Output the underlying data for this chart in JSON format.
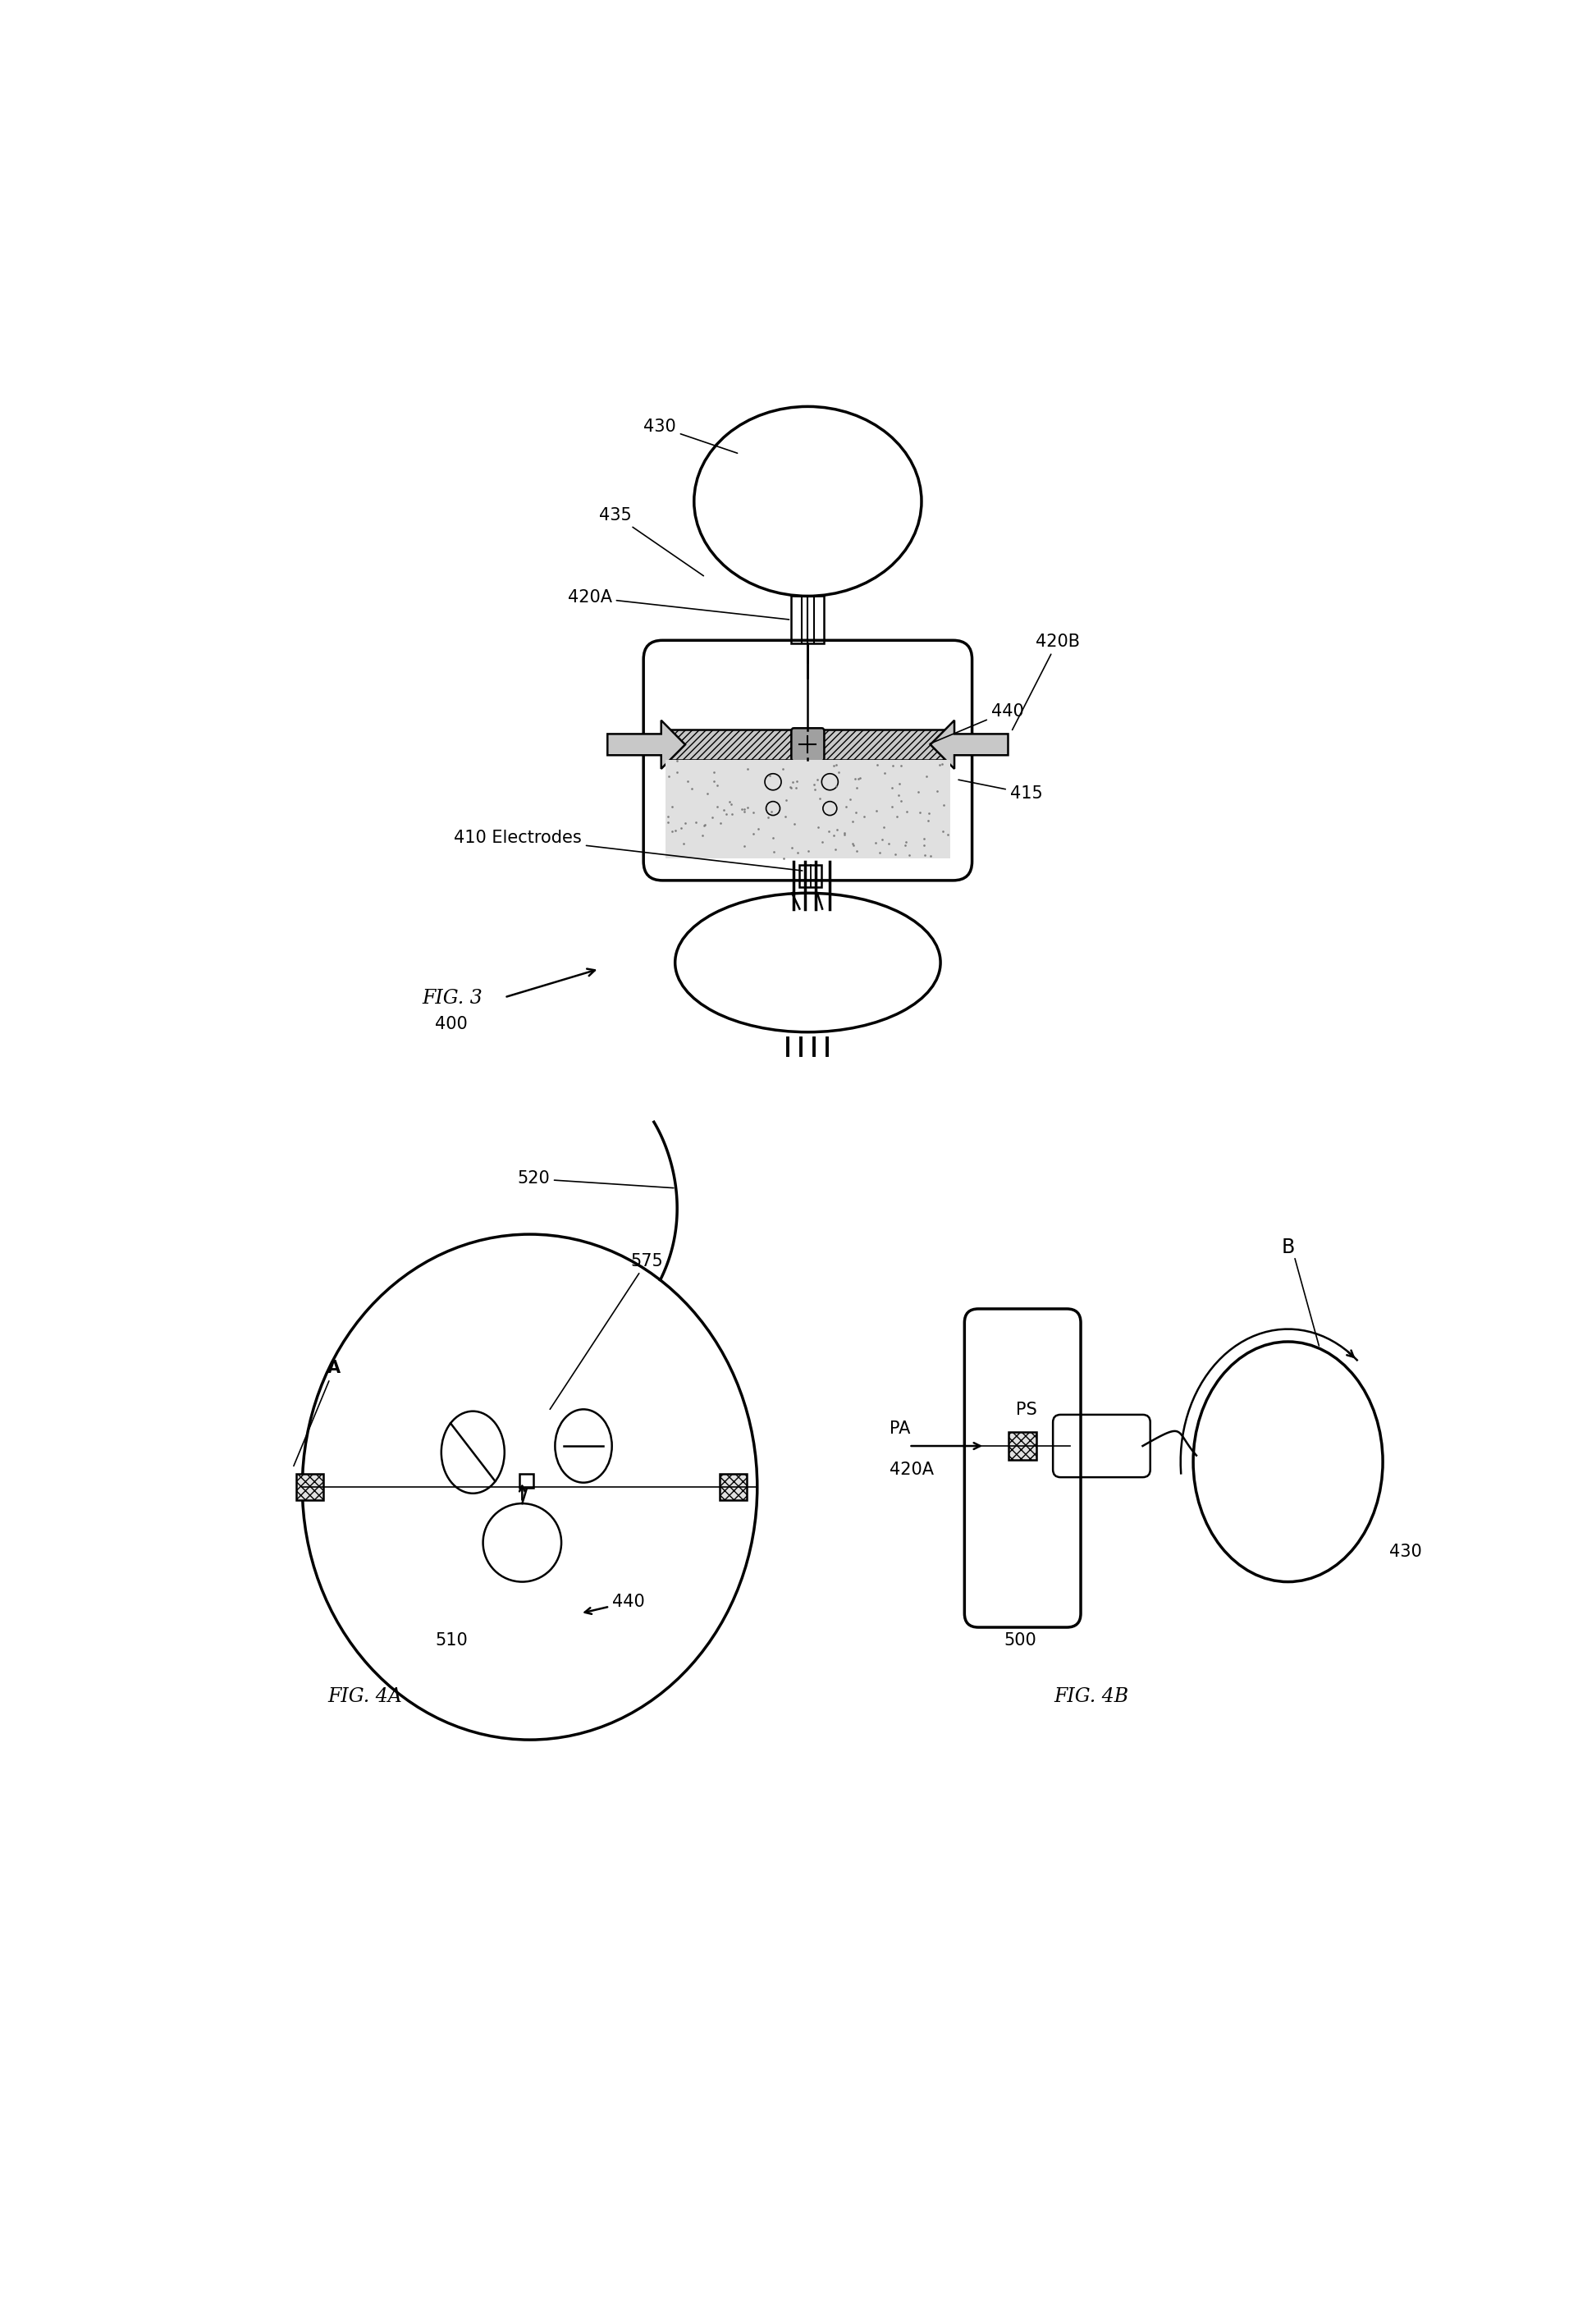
{
  "bg_color": "#ffffff",
  "line_color": "#000000",
  "gray_fill": "#c8c8c8",
  "light_gray": "#e0e0e0",
  "med_gray": "#a0a0a0",
  "fig3_label": "FIG. 3",
  "fig4a_label": "FIG. 4A",
  "fig4b_label": "FIG. 4B",
  "ref_400": "400",
  "ref_410": "410 Electrodes",
  "ref_415": "415",
  "ref_420A": "420A",
  "ref_420B": "420B",
  "ref_430": "430",
  "ref_435": "435",
  "ref_440": "440",
  "ref_510": "510",
  "ref_520": "520",
  "ref_575": "575",
  "ref_500": "500",
  "ref_420A_b": "420A",
  "ref_430_b": "430",
  "ref_A": "A",
  "ref_B": "B",
  "ref_PA": "PA",
  "ref_PS": "PS"
}
